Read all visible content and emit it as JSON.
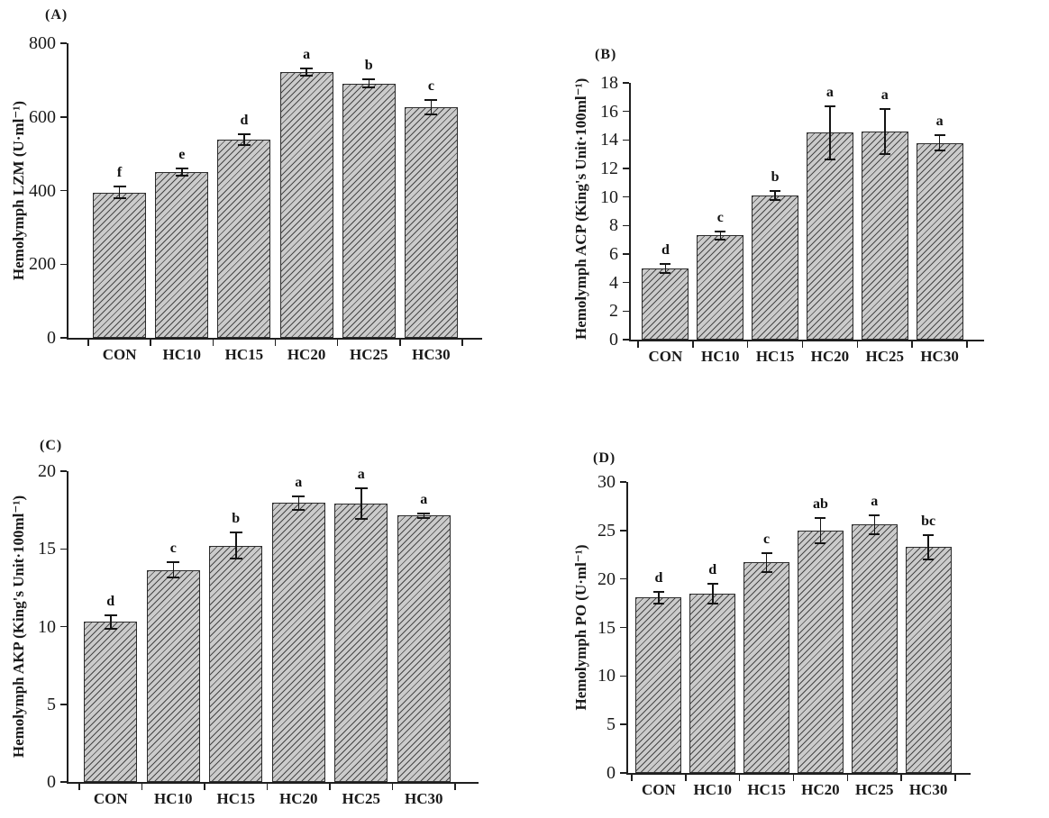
{
  "figure": {
    "title": "Hemolymph immune enzyme activities figure",
    "background": "#ffffff",
    "bar_fill": "#cbcbcb",
    "hatch_color": "#474747",
    "axis_color": "#1f1f1f",
    "text_color": "#1a1a1a",
    "categories": [
      "CON",
      "HC10",
      "HC15",
      "HC20",
      "HC25",
      "HC30"
    ]
  },
  "chart_data": [
    {
      "id": "A",
      "type": "bar",
      "panel_label": "(A)",
      "ylabel": "Hemolymph LZM (U·ml⁻¹)",
      "xlabel": "",
      "categories": [
        "CON",
        "HC10",
        "HC15",
        "HC20",
        "HC25",
        "HC30"
      ],
      "values": [
        395,
        450,
        538,
        721,
        690,
        626
      ],
      "errors": [
        16,
        10,
        15,
        10,
        11,
        20
      ],
      "sig_letters": [
        "f",
        "e",
        "d",
        "a",
        "b",
        "c"
      ],
      "ylim": [
        0,
        800
      ],
      "yticks": [
        0,
        200,
        400,
        600,
        800
      ],
      "grid": false,
      "legend": "none",
      "hatch": "diagonal"
    },
    {
      "id": "B",
      "type": "bar",
      "panel_label": "(B)",
      "ylabel": "Hemolymph ACP (King's Unit·100ml⁻¹)",
      "xlabel": "",
      "categories": [
        "CON",
        "HC10",
        "HC15",
        "HC20",
        "HC25",
        "HC30"
      ],
      "values": [
        5.0,
        7.3,
        10.1,
        14.5,
        14.6,
        13.8
      ],
      "errors": [
        0.3,
        0.3,
        0.3,
        1.85,
        1.6,
        0.55
      ],
      "sig_letters": [
        "d",
        "c",
        "b",
        "a",
        "a",
        "a"
      ],
      "ylim": [
        0,
        18
      ],
      "yticks": [
        0,
        2,
        4,
        6,
        8,
        10,
        12,
        14,
        16,
        18
      ],
      "grid": false,
      "legend": "none",
      "hatch": "diagonal"
    },
    {
      "id": "C",
      "type": "bar",
      "panel_label": "(C)",
      "ylabel": "Hemolymph AKP (King's Unit·100ml⁻¹)",
      "xlabel": "",
      "categories": [
        "CON",
        "HC10",
        "HC15",
        "HC20",
        "HC25",
        "HC30"
      ],
      "values": [
        10.3,
        13.65,
        15.2,
        17.95,
        17.9,
        17.15
      ],
      "errors": [
        0.45,
        0.5,
        0.85,
        0.45,
        1.0,
        0.15
      ],
      "sig_letters": [
        "d",
        "c",
        "b",
        "a",
        "a",
        "a"
      ],
      "ylim": [
        0,
        20
      ],
      "yticks": [
        0,
        5,
        10,
        15,
        20
      ],
      "grid": false,
      "legend": "none",
      "hatch": "diagonal"
    },
    {
      "id": "D",
      "type": "bar",
      "panel_label": "(D)",
      "ylabel": "Hemolymph PO (U·ml⁻¹)",
      "xlabel": "",
      "categories": [
        "CON",
        "HC10",
        "HC15",
        "HC20",
        "HC25",
        "HC30"
      ],
      "values": [
        18.1,
        18.5,
        21.7,
        25.0,
        25.6,
        23.3
      ],
      "errors": [
        0.6,
        1.0,
        0.95,
        1.3,
        0.95,
        1.25
      ],
      "sig_letters": [
        "d",
        "d",
        "c",
        "ab",
        "a",
        "bc"
      ],
      "ylim": [
        0,
        30
      ],
      "yticks": [
        0,
        5,
        10,
        15,
        20,
        25,
        30
      ],
      "grid": false,
      "legend": "none",
      "hatch": "diagonal"
    }
  ]
}
